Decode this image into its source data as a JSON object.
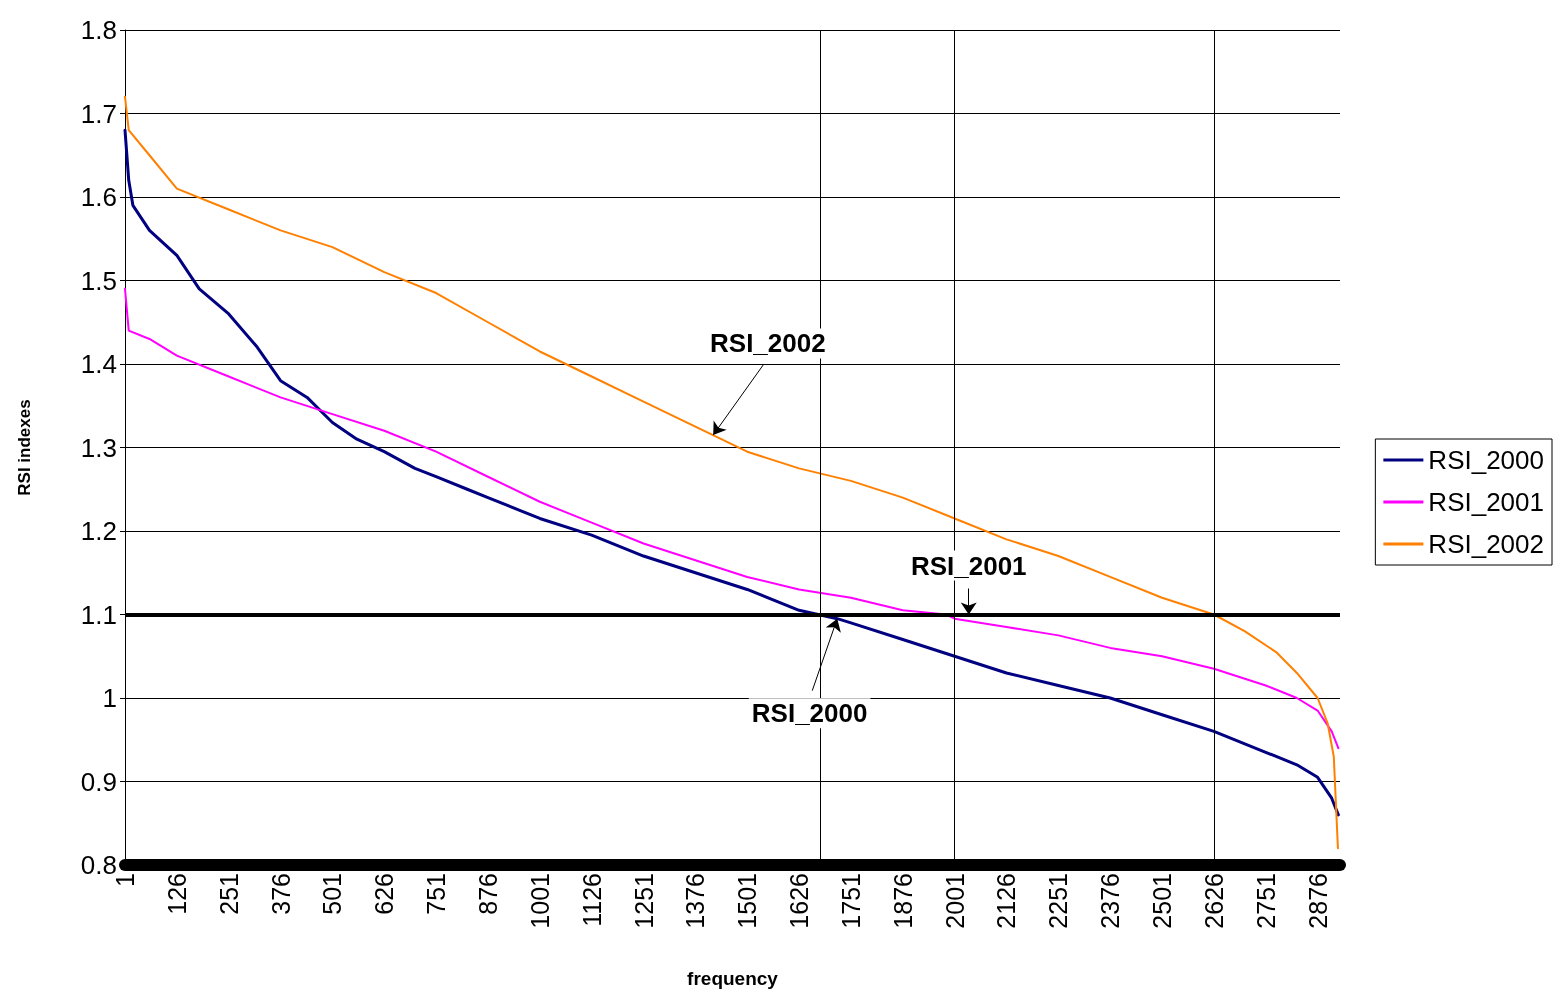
{
  "chart_data": {
    "type": "line",
    "xlabel": "frequency",
    "ylabel": "RSI indexes",
    "xlim": [
      1,
      2930
    ],
    "xticks": [
      1,
      126,
      251,
      376,
      501,
      626,
      751,
      876,
      1001,
      1126,
      1251,
      1376,
      1501,
      1626,
      1751,
      1876,
      2001,
      2126,
      2251,
      2376,
      2501,
      2626,
      2751,
      2876
    ],
    "ylim": [
      0.8,
      1.8
    ],
    "yticks": [
      0.8,
      0.9,
      1,
      1.1,
      1.2,
      1.3,
      1.4,
      1.5,
      1.6,
      1.7,
      1.8
    ],
    "grid": "y",
    "legend": "right",
    "marker": "none",
    "line_style": "solid",
    "series": [
      {
        "name": "RSI_2000",
        "color": "#000080",
        "x": [
          1,
          10,
          20,
          60,
          126,
          180,
          251,
          320,
          376,
          440,
          501,
          560,
          626,
          700,
          751,
          826,
          876,
          951,
          1001,
          1126,
          1251,
          1376,
          1501,
          1626,
          1718,
          1751,
          1876,
          2001,
          2126,
          2251,
          2376,
          2501,
          2626,
          2751,
          2826,
          2876,
          2910,
          2926
        ],
        "values": [
          1.68,
          1.62,
          1.59,
          1.56,
          1.53,
          1.49,
          1.46,
          1.42,
          1.38,
          1.36,
          1.33,
          1.31,
          1.295,
          1.275,
          1.265,
          1.25,
          1.24,
          1.225,
          1.215,
          1.195,
          1.17,
          1.15,
          1.13,
          1.105,
          1.095,
          1.09,
          1.07,
          1.05,
          1.03,
          1.015,
          1.0,
          0.98,
          0.96,
          0.935,
          0.92,
          0.905,
          0.88,
          0.86
        ]
      },
      {
        "name": "RSI_2001",
        "color": "#ff00ff",
        "x": [
          1,
          10,
          60,
          126,
          251,
          376,
          501,
          626,
          751,
          876,
          1001,
          1126,
          1251,
          1376,
          1501,
          1626,
          1751,
          1876,
          1980,
          2001,
          2126,
          2251,
          2376,
          2501,
          2626,
          2751,
          2826,
          2876,
          2910,
          2926
        ],
        "values": [
          1.49,
          1.44,
          1.43,
          1.41,
          1.385,
          1.36,
          1.34,
          1.32,
          1.295,
          1.265,
          1.235,
          1.21,
          1.185,
          1.165,
          1.145,
          1.13,
          1.12,
          1.105,
          1.1,
          1.095,
          1.085,
          1.075,
          1.06,
          1.05,
          1.035,
          1.015,
          1.0,
          0.985,
          0.96,
          0.94
        ]
      },
      {
        "name": "RSI_2002",
        "color": "#ff8000",
        "x": [
          1,
          10,
          60,
          126,
          251,
          376,
          501,
          626,
          751,
          876,
          1001,
          1126,
          1251,
          1376,
          1501,
          1626,
          1751,
          1876,
          2001,
          2126,
          2251,
          2376,
          2501,
          2626,
          2700,
          2776,
          2826,
          2876,
          2900,
          2915,
          2925
        ],
        "values": [
          1.72,
          1.68,
          1.65,
          1.61,
          1.585,
          1.56,
          1.54,
          1.51,
          1.485,
          1.45,
          1.415,
          1.385,
          1.355,
          1.325,
          1.295,
          1.275,
          1.26,
          1.24,
          1.215,
          1.19,
          1.17,
          1.145,
          1.12,
          1.1,
          1.08,
          1.055,
          1.03,
          1.0,
          0.97,
          0.93,
          0.82
        ]
      }
    ],
    "ref_lines": [
      {
        "axis": "y",
        "value": 1.1,
        "color": "#000000"
      },
      {
        "axis": "x",
        "value": 1678,
        "color": "#000000"
      },
      {
        "axis": "x",
        "value": 2001,
        "color": "#000000"
      },
      {
        "axis": "x",
        "value": 2626,
        "color": "#000000"
      }
    ],
    "annotations": [
      {
        "text": "RSI_2002",
        "x": 1419,
        "y": 1.315
      },
      {
        "text": "RSI_2001",
        "x": 2035,
        "y": 1.1
      },
      {
        "text": "RSI_2000",
        "x": 1718,
        "y": 1.095
      }
    ]
  }
}
